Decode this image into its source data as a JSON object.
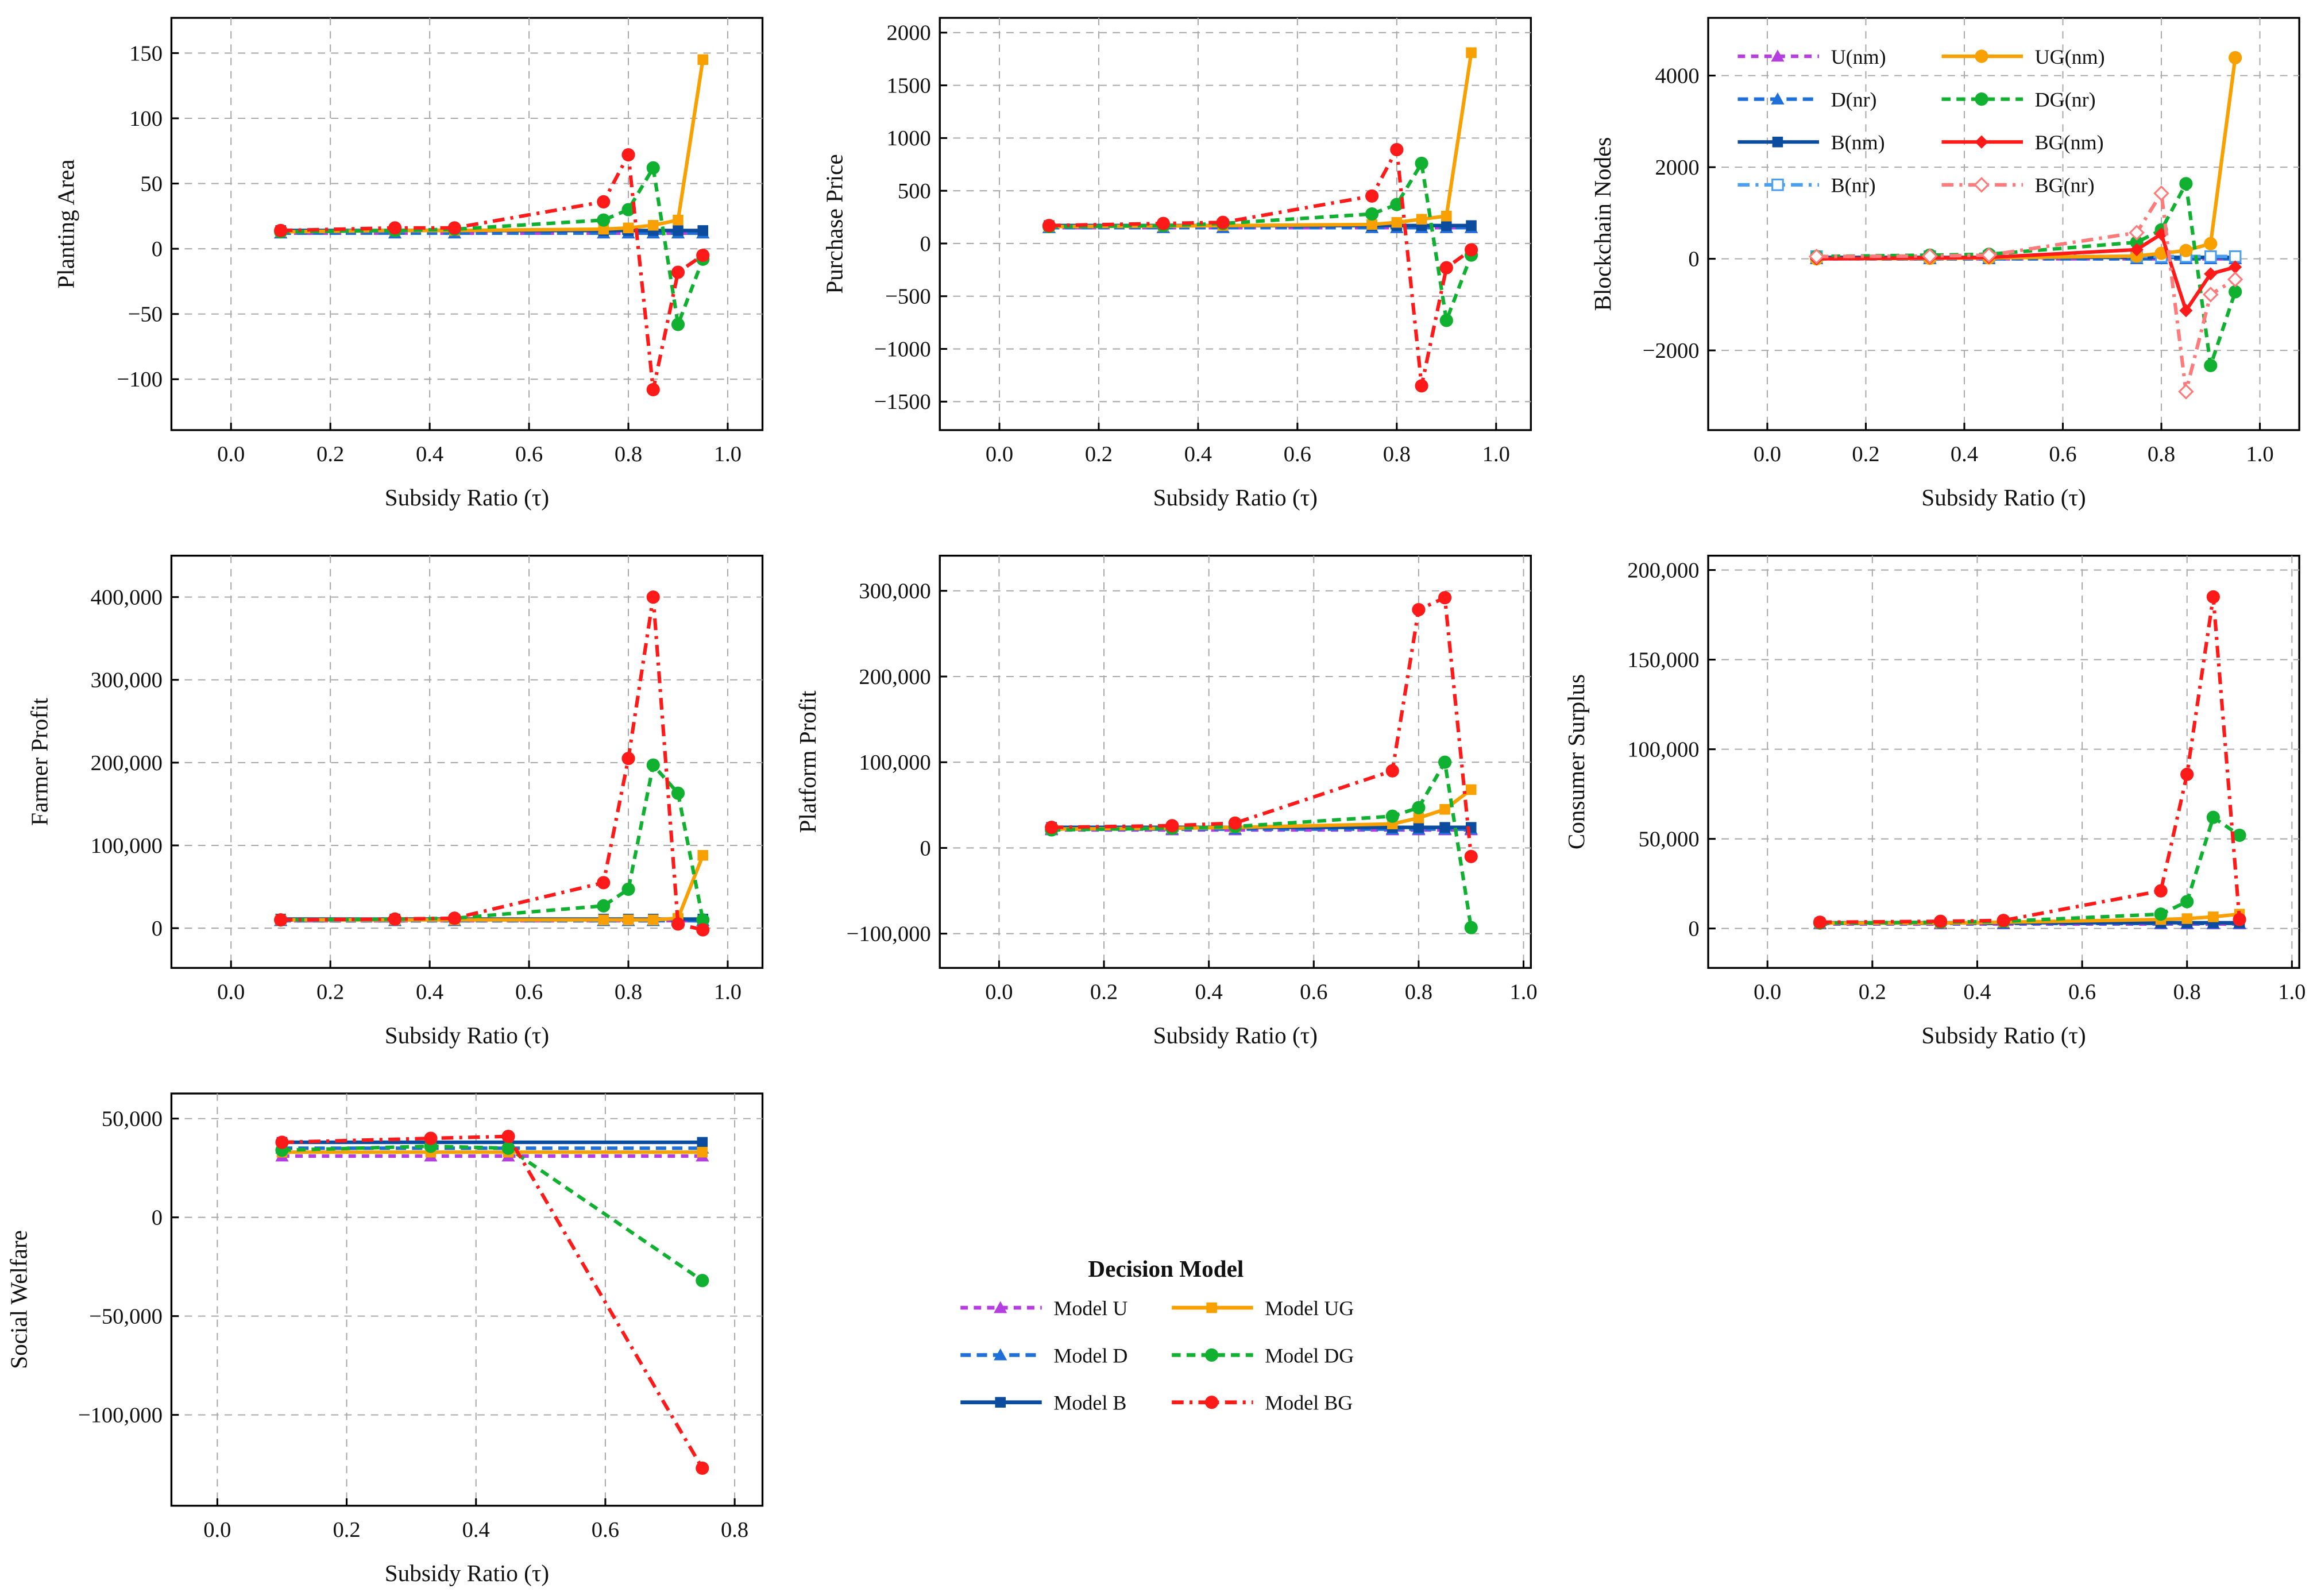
{
  "styles": {
    "U": {
      "color": "#b43ee0",
      "dash": "5,4",
      "marker": "triangle"
    },
    "D": {
      "color": "#1e6fd8",
      "dash": "7,4",
      "marker": "triangle"
    },
    "B": {
      "color": "#0b4c9e",
      "dash": "",
      "marker": "square"
    },
    "UG": {
      "color": "#f7a000",
      "dash": "",
      "marker": "square"
    },
    "DG": {
      "color": "#10b030",
      "dash": "6,4",
      "marker": "circle"
    },
    "BG": {
      "color": "#ff1a1a",
      "dash": "8,4,2,4",
      "marker": "circle"
    },
    "Bnr": {
      "color": "#4a9ff0",
      "dash": "8,4,2,4",
      "marker": "square-open"
    },
    "BGnm": {
      "color": "#ff1a1a",
      "dash": "",
      "marker": "diamond"
    },
    "BGnr": {
      "color": "#ff7a7a",
      "dash": "8,4,2,4",
      "marker": "diamond-open"
    },
    "UGnm": {
      "color": "#f7a000",
      "dash": "",
      "marker": "circle"
    }
  },
  "chart_data": [
    {
      "type": "line",
      "ylabel": "Planting Area",
      "xlabel": "Subsidy Ratio (τ)",
      "xlim": [
        -0.12,
        1.07
      ],
      "ylim": [
        -139,
        177
      ],
      "xticks": [
        "0.0",
        "0.2",
        "0.4",
        "0.6",
        "0.8",
        "1.0"
      ],
      "xtick_values": [
        0,
        0.2,
        0.4,
        0.6,
        0.8,
        1.0
      ],
      "yticks": [
        "−100",
        "−50",
        "0",
        "50",
        "100",
        "150"
      ],
      "ytick_values": [
        -100,
        -50,
        0,
        50,
        100,
        150
      ],
      "x": [
        0.1,
        0.33,
        0.45,
        0.75,
        0.8,
        0.85,
        0.9,
        0.95
      ],
      "series": [
        {
          "name": "Model U",
          "style": "U",
          "values": [
            12,
            12,
            12,
            12,
            12,
            12,
            12,
            12
          ]
        },
        {
          "name": "Model D",
          "style": "D",
          "values": [
            12,
            12,
            12,
            12,
            12,
            12,
            12,
            12
          ]
        },
        {
          "name": "Model B",
          "style": "B",
          "values": [
            14,
            14,
            14,
            14,
            14,
            14,
            14,
            14
          ]
        },
        {
          "name": "Model UG",
          "style": "UG",
          "values": [
            13,
            14,
            14,
            15,
            16,
            18,
            22,
            145
          ]
        },
        {
          "name": "Model DG",
          "style": "DG",
          "values": [
            13,
            14,
            15,
            22,
            30,
            62,
            -58,
            -8
          ]
        },
        {
          "name": "Model BG",
          "style": "BG",
          "values": [
            14,
            16,
            16,
            36,
            72,
            -108,
            -18,
            -5
          ]
        }
      ]
    },
    {
      "type": "line",
      "ylabel": "Purchase Price",
      "xlabel": "Subsidy Ratio (τ)",
      "xlim": [
        -0.12,
        1.07
      ],
      "ylim": [
        -1770,
        2140
      ],
      "xticks": [
        "0.0",
        "0.2",
        "0.4",
        "0.6",
        "0.8",
        "1.0"
      ],
      "xtick_values": [
        0,
        0.2,
        0.4,
        0.6,
        0.8,
        1.0
      ],
      "yticks": [
        "−1500",
        "−1000",
        "−500",
        "0",
        "500",
        "1000",
        "1500",
        "2000"
      ],
      "ytick_values": [
        -1500,
        -1000,
        -500,
        0,
        500,
        1000,
        1500,
        2000
      ],
      "x": [
        0.1,
        0.33,
        0.45,
        0.75,
        0.8,
        0.85,
        0.9,
        0.95
      ],
      "series": [
        {
          "name": "Model U",
          "style": "U",
          "values": [
            150,
            150,
            150,
            150,
            150,
            150,
            150,
            150
          ]
        },
        {
          "name": "Model D",
          "style": "D",
          "values": [
            150,
            150,
            150,
            150,
            150,
            150,
            150,
            150
          ]
        },
        {
          "name": "Model B",
          "style": "B",
          "values": [
            170,
            170,
            170,
            170,
            170,
            170,
            170,
            170
          ]
        },
        {
          "name": "Model UG",
          "style": "UG",
          "values": [
            160,
            165,
            170,
            180,
            200,
            230,
            260,
            1810
          ]
        },
        {
          "name": "Model DG",
          "style": "DG",
          "values": [
            160,
            170,
            190,
            280,
            370,
            760,
            -730,
            -110
          ]
        },
        {
          "name": "Model BG",
          "style": "BG",
          "values": [
            170,
            190,
            200,
            450,
            890,
            -1350,
            -230,
            -60
          ]
        }
      ]
    },
    {
      "type": "line",
      "ylabel": "Blockchain Nodes",
      "xlabel": "Subsidy Ratio (τ)",
      "xlim": [
        -0.12,
        1.08
      ],
      "ylim": [
        -3740,
        5260
      ],
      "xticks": [
        "0.0",
        "0.2",
        "0.4",
        "0.6",
        "0.8",
        "1.0"
      ],
      "xtick_values": [
        0,
        0.2,
        0.4,
        0.6,
        0.8,
        1.0
      ],
      "yticks": [
        "−2000",
        "0",
        "2000",
        "4000"
      ],
      "ytick_values": [
        -2000,
        0,
        2000,
        4000
      ],
      "x": [
        0.1,
        0.33,
        0.45,
        0.75,
        0.8,
        0.85,
        0.9,
        0.95
      ],
      "legend_position": "top-left",
      "series": [
        {
          "name": "U(n_m)",
          "label": "U(nm)",
          "style": "U",
          "values": [
            0,
            0,
            0,
            0,
            0,
            0,
            0,
            0
          ]
        },
        {
          "name": "D(n_r)",
          "label": "D(nr)",
          "style": "D",
          "values": [
            0,
            0,
            0,
            0,
            0,
            0,
            0,
            0
          ]
        },
        {
          "name": "B(n_m)",
          "label": "B(nm)",
          "style": "B",
          "values": [
            30,
            30,
            30,
            30,
            30,
            30,
            30,
            30
          ]
        },
        {
          "name": "B(n_r)",
          "label": "B(nr)",
          "style": "Bnr",
          "values": [
            50,
            50,
            50,
            50,
            50,
            50,
            50,
            50
          ]
        },
        {
          "name": "UG(n_m)",
          "label": "UG(nm)",
          "style": "UGnm",
          "values": [
            0,
            10,
            20,
            60,
            120,
            180,
            330,
            4390
          ]
        },
        {
          "name": "DG(n_r)",
          "label": "DG(nr)",
          "style": "DG",
          "values": [
            50,
            80,
            100,
            360,
            630,
            1640,
            -2330,
            -720
          ]
        },
        {
          "name": "BG(n_m)",
          "label": "BG(nm)",
          "style": "BGnm",
          "values": [
            0,
            20,
            30,
            200,
            540,
            -1130,
            -330,
            -180
          ]
        },
        {
          "name": "BG(n_r)",
          "label": "BG(nr)",
          "style": "BGnr",
          "values": [
            50,
            60,
            80,
            570,
            1430,
            -2900,
            -780,
            -450
          ]
        }
      ]
    },
    {
      "type": "line",
      "ylabel": "Farmer Profit",
      "xlabel": "Subsidy Ratio (τ)",
      "xlim": [
        -0.12,
        1.07
      ],
      "ylim": [
        -48000,
        450000
      ],
      "xticks": [
        "0.0",
        "0.2",
        "0.4",
        "0.6",
        "0.8",
        "1.0"
      ],
      "xtick_values": [
        0,
        0.2,
        0.4,
        0.6,
        0.8,
        1.0
      ],
      "yticks": [
        "0",
        "100,000",
        "200,000",
        "300,000",
        "400,000"
      ],
      "ytick_values": [
        0,
        100000,
        200000,
        300000,
        400000
      ],
      "x": [
        0.1,
        0.33,
        0.45,
        0.75,
        0.8,
        0.85,
        0.9,
        0.95
      ],
      "series": [
        {
          "name": "Model U",
          "style": "U",
          "values": [
            9000,
            9000,
            9000,
            9000,
            9000,
            9000,
            9000,
            9000
          ]
        },
        {
          "name": "Model D",
          "style": "D",
          "values": [
            9000,
            9000,
            9000,
            9000,
            9000,
            9000,
            9000,
            9000
          ]
        },
        {
          "name": "Model B",
          "style": "B",
          "values": [
            11000,
            11000,
            11000,
            11000,
            11000,
            11000,
            11000,
            11000
          ]
        },
        {
          "name": "Model UG",
          "style": "UG",
          "values": [
            10000,
            10000,
            10000,
            10000,
            10000,
            10000,
            12000,
            88000
          ]
        },
        {
          "name": "Model DG",
          "style": "DG",
          "values": [
            10000,
            11000,
            12000,
            27000,
            47000,
            197000,
            163000,
            10000
          ]
        },
        {
          "name": "Model BG",
          "style": "BG",
          "values": [
            10000,
            11000,
            12000,
            55000,
            205000,
            400000,
            5000,
            -2000
          ]
        }
      ]
    },
    {
      "type": "line",
      "ylabel": "Platform Profit",
      "xlabel": "Subsidy Ratio (τ)",
      "xlim": [
        -0.113,
        1.014
      ],
      "ylim": [
        -140000,
        341000
      ],
      "xticks": [
        "0.0",
        "0.2",
        "0.4",
        "0.6",
        "0.8",
        "1.0"
      ],
      "xtick_values": [
        0,
        0.2,
        0.4,
        0.6,
        0.8,
        1.0
      ],
      "yticks": [
        "−100,000",
        "0",
        "100,000",
        "200,000",
        "300,000"
      ],
      "ytick_values": [
        -100000,
        0,
        100000,
        200000,
        300000
      ],
      "x": [
        0.1,
        0.33,
        0.45,
        0.75,
        0.8,
        0.85,
        0.9
      ],
      "series": [
        {
          "name": "Model U",
          "style": "U",
          "values": [
            21000,
            21000,
            21000,
            21000,
            21000,
            21000,
            21000
          ]
        },
        {
          "name": "Model D",
          "style": "D",
          "values": [
            22000,
            22000,
            22000,
            22000,
            22000,
            22000,
            22000
          ]
        },
        {
          "name": "Model B",
          "style": "B",
          "values": [
            24000,
            24000,
            24000,
            24000,
            24000,
            24000,
            24000
          ]
        },
        {
          "name": "Model UG",
          "style": "UG",
          "values": [
            22000,
            23000,
            24000,
            28000,
            35000,
            45000,
            68000
          ]
        },
        {
          "name": "Model DG",
          "style": "DG",
          "values": [
            21000,
            23000,
            25000,
            37000,
            47000,
            100000,
            -93000
          ]
        },
        {
          "name": "Model BG",
          "style": "BG",
          "values": [
            24000,
            26000,
            29000,
            90000,
            278000,
            292000,
            -10000
          ]
        }
      ]
    },
    {
      "type": "line",
      "ylabel": "Consumer Surplus",
      "xlabel": "Subsidy Ratio (τ)",
      "xlim": [
        -0.113,
        1.014
      ],
      "ylim": [
        -22000,
        208000
      ],
      "xticks": [
        "0.0",
        "0.2",
        "0.4",
        "0.6",
        "0.8",
        "1.0"
      ],
      "xtick_values": [
        0,
        0.2,
        0.4,
        0.6,
        0.8,
        1.0
      ],
      "yticks": [
        "0",
        "50,000",
        "100,000",
        "150,000",
        "200,000"
      ],
      "ytick_values": [
        0,
        50000,
        100000,
        150000,
        200000
      ],
      "x": [
        0.1,
        0.33,
        0.45,
        0.75,
        0.8,
        0.85,
        0.9
      ],
      "series": [
        {
          "name": "Model U",
          "style": "U",
          "values": [
            2500,
            2500,
            2500,
            2500,
            2500,
            2500,
            2500
          ]
        },
        {
          "name": "Model D",
          "style": "D",
          "values": [
            2800,
            2800,
            2800,
            2800,
            2800,
            2800,
            2800
          ]
        },
        {
          "name": "Model B",
          "style": "B",
          "values": [
            3200,
            3200,
            3200,
            3200,
            3200,
            3200,
            3200
          ]
        },
        {
          "name": "Model UG",
          "style": "UG",
          "values": [
            3000,
            3000,
            3500,
            5000,
            5500,
            6500,
            8000
          ]
        },
        {
          "name": "Model DG",
          "style": "DG",
          "values": [
            3000,
            3500,
            4000,
            8000,
            15000,
            62000,
            52000
          ]
        },
        {
          "name": "Model BG",
          "style": "BG",
          "values": [
            3500,
            4000,
            4500,
            21000,
            86000,
            185000,
            5000
          ]
        }
      ]
    },
    {
      "type": "line",
      "ylabel": "Social Welfare",
      "xlabel": "Subsidy Ratio (τ)",
      "xlim": [
        -0.071,
        0.843
      ],
      "ylim": [
        -146000,
        62700
      ],
      "xticks": [
        "0.0",
        "0.2",
        "0.4",
        "0.6",
        "0.8"
      ],
      "xtick_values": [
        0,
        0.2,
        0.4,
        0.6,
        0.8
      ],
      "yticks": [
        "−100,000",
        "−50,000",
        "0",
        "50,000"
      ],
      "ytick_values": [
        -100000,
        -50000,
        0,
        50000
      ],
      "x": [
        0.1,
        0.33,
        0.45,
        0.75
      ],
      "series": [
        {
          "name": "Model U",
          "style": "U",
          "values": [
            31000,
            31000,
            31000,
            31000
          ]
        },
        {
          "name": "Model D",
          "style": "D",
          "values": [
            35000,
            35000,
            35000,
            35000
          ]
        },
        {
          "name": "Model B",
          "style": "B",
          "values": [
            38000,
            38000,
            38000,
            38000
          ]
        },
        {
          "name": "Model UG",
          "style": "UG",
          "values": [
            33000,
            33000,
            33000,
            33000
          ]
        },
        {
          "name": "Model DG",
          "style": "DG",
          "values": [
            34000,
            36000,
            35000,
            -32000
          ]
        },
        {
          "name": "Model BG",
          "style": "BG",
          "values": [
            38000,
            40000,
            41000,
            -127000
          ]
        }
      ]
    }
  ],
  "legend": {
    "title": "Decision Model",
    "entries": [
      {
        "label": "Model U",
        "style": "U"
      },
      {
        "label": "Model D",
        "style": "D"
      },
      {
        "label": "Model B",
        "style": "B"
      },
      {
        "label": "Model UG",
        "style": "UG"
      },
      {
        "label": "Model DG",
        "style": "DG"
      },
      {
        "label": "Model BG",
        "style": "BG"
      }
    ]
  }
}
